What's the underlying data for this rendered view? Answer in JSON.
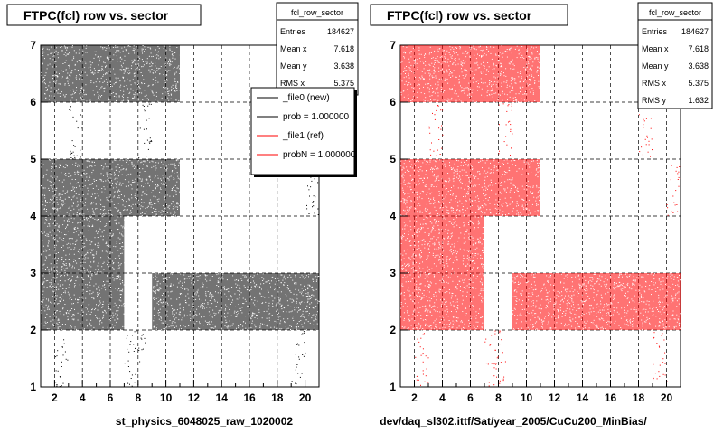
{
  "colors": {
    "ref": "#ff0000",
    "new": "#000000"
  },
  "chart_data": [
    {
      "type": "scatter",
      "title": "FTPC(fcl) row vs. sector",
      "xlim": [
        1,
        21
      ],
      "ylim": [
        1,
        7
      ],
      "xticks": [
        "2",
        "4",
        "6",
        "8",
        "10",
        "12",
        "14",
        "16",
        "18",
        "20"
      ],
      "yticks": [
        "1",
        "2",
        "3",
        "4",
        "5",
        "6",
        "7"
      ],
      "grid": true,
      "color": "#000000",
      "stats": {
        "name": "fcl_row_sector",
        "rows": [
          {
            "label": "Entries",
            "value": "184627"
          },
          {
            "label": "Mean x",
            "value": "7.618"
          },
          {
            "label": "Mean y",
            "value": "3.638"
          },
          {
            "label": "RMS x",
            "value": "5.375"
          }
        ]
      },
      "legend": [
        {
          "label": "_file0 (new)",
          "color": "#000000"
        },
        {
          "label": "prob = 1.000000",
          "color": "#000000"
        },
        {
          "label": "_file1 (ref)",
          "color": "#ff0000"
        },
        {
          "label": "probN = 1.000000",
          "color": "#ff0000"
        }
      ],
      "dense_regions": [
        {
          "x": [
            1,
            11
          ],
          "y": [
            6,
            7
          ]
        },
        {
          "x": [
            1,
            11
          ],
          "y": [
            4,
            5
          ]
        },
        {
          "x": [
            1,
            7
          ],
          "y": [
            3,
            4
          ]
        },
        {
          "x": [
            1,
            7
          ],
          "y": [
            2,
            3
          ]
        },
        {
          "x": [
            9,
            21
          ],
          "y": [
            2,
            3
          ]
        }
      ],
      "sparse_regions": [
        {
          "x": [
            3,
            4
          ],
          "y": [
            5,
            6
          ]
        },
        {
          "x": [
            8,
            9
          ],
          "y": [
            5,
            6
          ]
        },
        {
          "x": [
            2,
            3
          ],
          "y": [
            1,
            2
          ]
        },
        {
          "x": [
            7,
            8.5
          ],
          "y": [
            1,
            2
          ]
        },
        {
          "x": [
            19,
            20
          ],
          "y": [
            1,
            2
          ]
        },
        {
          "x": [
            20,
            21
          ],
          "y": [
            4,
            5
          ]
        }
      ],
      "caption": "st_physics_6048025_raw_1020002"
    },
    {
      "type": "scatter",
      "title": "FTPC(fcl) row vs. sector",
      "xlim": [
        1,
        21
      ],
      "ylim": [
        1,
        7
      ],
      "xticks": [
        "2",
        "4",
        "6",
        "8",
        "10",
        "12",
        "14",
        "16",
        "18",
        "20"
      ],
      "yticks": [
        "1",
        "2",
        "3",
        "4",
        "5",
        "6",
        "7"
      ],
      "grid": true,
      "color": "#ff0000",
      "stats": {
        "name": "fcl_row_sector",
        "rows": [
          {
            "label": "Entries",
            "value": "184627"
          },
          {
            "label": "Mean x",
            "value": "7.618"
          },
          {
            "label": "Mean y",
            "value": "3.638"
          },
          {
            "label": "RMS x",
            "value": "5.375"
          },
          {
            "label": "RMS y",
            "value": "1.632"
          }
        ]
      },
      "legend": [],
      "dense_regions": [
        {
          "x": [
            1,
            11
          ],
          "y": [
            6,
            7
          ]
        },
        {
          "x": [
            1,
            11
          ],
          "y": [
            4,
            5
          ]
        },
        {
          "x": [
            1,
            7
          ],
          "y": [
            3,
            4
          ]
        },
        {
          "x": [
            1,
            7
          ],
          "y": [
            2,
            3
          ]
        },
        {
          "x": [
            9,
            21
          ],
          "y": [
            2,
            3
          ]
        }
      ],
      "sparse_regions": [
        {
          "x": [
            3,
            4
          ],
          "y": [
            5,
            6
          ]
        },
        {
          "x": [
            8,
            9
          ],
          "y": [
            5,
            6
          ]
        },
        {
          "x": [
            18,
            19
          ],
          "y": [
            5,
            6
          ]
        },
        {
          "x": [
            2,
            3
          ],
          "y": [
            1,
            2
          ]
        },
        {
          "x": [
            7,
            8.5
          ],
          "y": [
            1,
            2
          ]
        },
        {
          "x": [
            19,
            20
          ],
          "y": [
            1,
            2
          ]
        },
        {
          "x": [
            20,
            21
          ],
          "y": [
            4,
            5
          ]
        }
      ],
      "caption": "dev/daq_sl302.ittf/Sat/year_2005/CuCu200_MinBias/"
    }
  ]
}
